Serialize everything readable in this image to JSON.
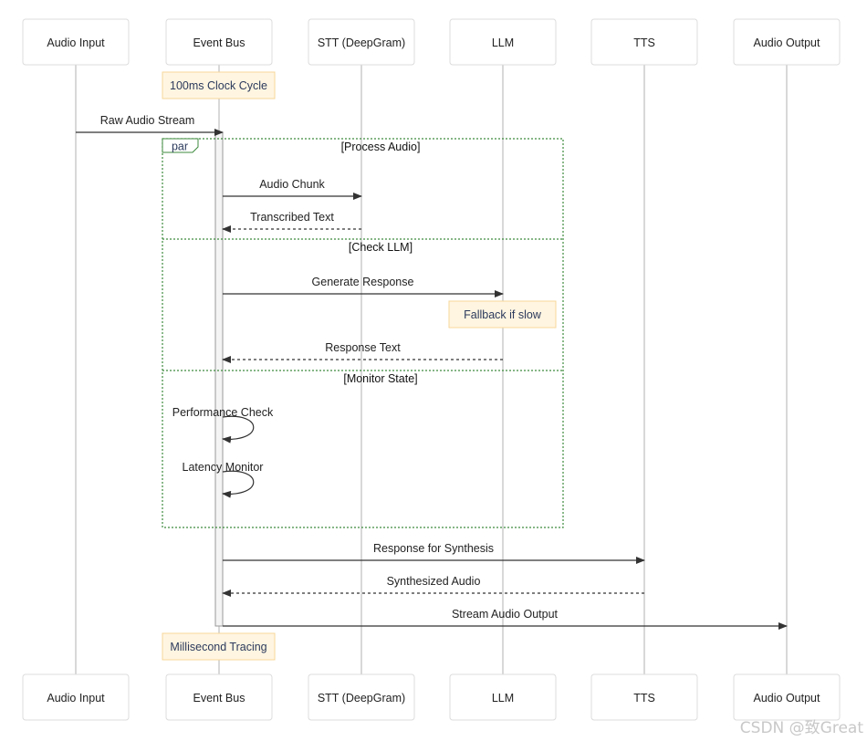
{
  "participants": [
    "Audio Input",
    "Event Bus",
    "STT (DeepGram)",
    "LLM",
    "TTS",
    "Audio Output"
  ],
  "notes": [
    "100ms Clock Cycle",
    "Fallback if slow",
    "Millisecond Tracing"
  ],
  "par": {
    "keyword": "par",
    "sections": [
      "[Process Audio]",
      "[Check LLM]",
      "[Monitor State]"
    ]
  },
  "messages": [
    {
      "from": "Audio Input",
      "to": "Event Bus",
      "label": "Raw Audio Stream",
      "style": "solid"
    },
    {
      "from": "Event Bus",
      "to": "STT (DeepGram)",
      "label": "Audio Chunk",
      "style": "solid"
    },
    {
      "from": "STT (DeepGram)",
      "to": "Event Bus",
      "label": "Transcribed Text",
      "style": "dashed"
    },
    {
      "from": "Event Bus",
      "to": "LLM",
      "label": "Generate Response",
      "style": "solid"
    },
    {
      "from": "LLM",
      "to": "Event Bus",
      "label": "Response Text",
      "style": "dashed"
    },
    {
      "from": "Event Bus",
      "to": "Event Bus",
      "label": "Performance Check",
      "style": "solid"
    },
    {
      "from": "Event Bus",
      "to": "Event Bus",
      "label": "Latency Monitor",
      "style": "solid"
    },
    {
      "from": "Event Bus",
      "to": "TTS",
      "label": "Response for Synthesis",
      "style": "solid"
    },
    {
      "from": "TTS",
      "to": "Event Bus",
      "label": "Synthesized Audio",
      "style": "dashed"
    },
    {
      "from": "Event Bus",
      "to": "Audio Output",
      "label": "Stream Audio Output",
      "style": "solid"
    }
  ],
  "colors": {
    "note_fill": "#fff5e1",
    "note_border": "#f7d79a",
    "note_text": "#2b3a5c",
    "par_border": "#3d8a3d",
    "lifeline": "#cccccc"
  },
  "watermark": "CSDN @致Great"
}
